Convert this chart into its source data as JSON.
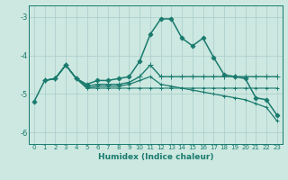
{
  "xlabel": "Humidex (Indice chaleur)",
  "bg_color": "#cce8e0",
  "grid_color": "#aacccc",
  "line_color": "#1a7a6e",
  "xlim": [
    -0.5,
    23.5
  ],
  "ylim": [
    -6.3,
    -2.7
  ],
  "yticks": [
    -6,
    -5,
    -4,
    -3
  ],
  "xticks": [
    0,
    1,
    2,
    3,
    4,
    5,
    6,
    7,
    8,
    9,
    10,
    11,
    12,
    13,
    14,
    15,
    16,
    17,
    18,
    19,
    20,
    21,
    22,
    23
  ],
  "series": [
    {
      "x": [
        0,
        1,
        2,
        3,
        4,
        5,
        6,
        7,
        8,
        9,
        10,
        11,
        12,
        13,
        14,
        15,
        16,
        17,
        18,
        19,
        20,
        21,
        22,
        23
      ],
      "y": [
        -5.2,
        -4.65,
        -4.6,
        -4.25,
        -4.6,
        -4.75,
        -4.65,
        -4.65,
        -4.6,
        -4.55,
        -4.15,
        -3.45,
        -3.05,
        -3.05,
        -3.55,
        -3.75,
        -3.55,
        -4.05,
        -4.5,
        -4.55,
        -4.6,
        -5.1,
        -5.15,
        -5.55
      ],
      "marker": "D",
      "markersize": 2.5,
      "linewidth": 1.1
    },
    {
      "x": [
        1,
        2,
        3,
        4,
        5,
        6,
        7,
        8,
        9,
        10,
        11,
        12,
        13,
        14,
        15,
        16,
        17,
        18,
        19,
        20,
        21,
        22,
        23
      ],
      "y": [
        -4.65,
        -4.6,
        -4.25,
        -4.6,
        -4.8,
        -4.75,
        -4.75,
        -4.75,
        -4.7,
        -4.55,
        -4.25,
        -4.55,
        -4.55,
        -4.55,
        -4.55,
        -4.55,
        -4.55,
        -4.55,
        -4.55,
        -4.55,
        -4.55,
        -4.55,
        -4.55
      ],
      "marker": "+",
      "markersize": 4,
      "linewidth": 1.0
    },
    {
      "x": [
        1,
        2,
        3,
        4,
        5,
        6,
        7,
        8,
        9,
        10,
        11,
        12,
        13,
        14,
        15,
        16,
        17,
        18,
        19,
        20,
        21,
        22,
        23
      ],
      "y": [
        -4.65,
        -4.6,
        -4.25,
        -4.6,
        -4.85,
        -4.8,
        -4.8,
        -4.8,
        -4.75,
        -4.65,
        -4.55,
        -4.75,
        -4.8,
        -4.85,
        -4.9,
        -4.95,
        -5.0,
        -5.05,
        -5.1,
        -5.15,
        -5.25,
        -5.35,
        -5.7
      ],
      "marker": "+",
      "markersize": 3,
      "linewidth": 0.9
    },
    {
      "x": [
        1,
        2,
        3,
        4,
        5,
        6,
        7,
        8,
        9,
        10,
        11,
        12,
        13,
        14,
        15,
        16,
        17,
        18,
        19,
        20,
        21,
        22,
        23
      ],
      "y": [
        -4.65,
        -4.6,
        -4.25,
        -4.6,
        -4.85,
        -4.85,
        -4.85,
        -4.85,
        -4.85,
        -4.85,
        -4.85,
        -4.85,
        -4.85,
        -4.85,
        -4.85,
        -4.85,
        -4.85,
        -4.85,
        -4.85,
        -4.85,
        -4.85,
        -4.85,
        -4.85
      ],
      "marker": "+",
      "markersize": 3,
      "linewidth": 0.8
    }
  ]
}
